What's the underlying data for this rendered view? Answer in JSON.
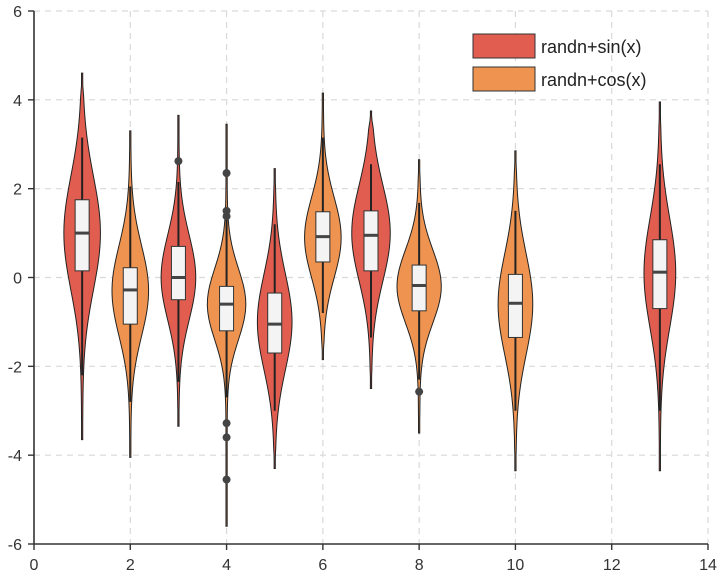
{
  "chart_data": {
    "type": "violin",
    "title": "",
    "xlabel": "",
    "ylabel": "",
    "xlim": [
      0,
      14
    ],
    "ylim": [
      -6,
      6
    ],
    "x_ticks": [
      0,
      2,
      4,
      6,
      8,
      10,
      12,
      14
    ],
    "y_ticks": [
      -6,
      -4,
      -2,
      0,
      2,
      4,
      6
    ],
    "grid": true,
    "legend_position": "top-right",
    "series": [
      {
        "name": "randn+sin(x)",
        "color": "#e05d50",
        "violins": [
          {
            "x": 1,
            "min": -3.65,
            "max": 4.6,
            "q1": 0.15,
            "median": 1.0,
            "q3": 1.75,
            "whisker_low": -2.2,
            "whisker_high": 3.15,
            "peak": 1.0,
            "half_width": 0.38,
            "outliers": []
          },
          {
            "x": 3,
            "min": -3.35,
            "max": 3.65,
            "q1": -0.5,
            "median": 0.0,
            "q3": 0.7,
            "whisker_low": -2.35,
            "whisker_high": 2.15,
            "peak": 0.0,
            "half_width": 0.36,
            "outliers": [
              2.62
            ]
          },
          {
            "x": 5,
            "min": -4.3,
            "max": 2.45,
            "q1": -1.7,
            "median": -1.05,
            "q3": -0.35,
            "whisker_low": -3.0,
            "whisker_high": 1.2,
            "peak": -1.0,
            "half_width": 0.36,
            "outliers": []
          },
          {
            "x": 7,
            "min": -2.5,
            "max": 3.75,
            "q1": 0.15,
            "median": 0.95,
            "q3": 1.5,
            "whisker_low": -1.35,
            "whisker_high": 2.55,
            "peak": 1.0,
            "half_width": 0.4,
            "outliers": []
          },
          {
            "x": 13,
            "min": -4.35,
            "max": 3.95,
            "q1": -0.7,
            "median": 0.12,
            "q3": 0.85,
            "whisker_low": -3.0,
            "whisker_high": 2.55,
            "peak": 0.1,
            "half_width": 0.33,
            "outliers": []
          }
        ]
      },
      {
        "name": "randn+cos(x)",
        "color": "#ee9450",
        "violins": [
          {
            "x": 2,
            "min": -4.05,
            "max": 3.3,
            "q1": -1.05,
            "median": -0.28,
            "q3": 0.22,
            "whisker_low": -2.8,
            "whisker_high": 2.05,
            "peak": -0.3,
            "half_width": 0.38,
            "outliers": []
          },
          {
            "x": 4,
            "min": -5.6,
            "max": 3.45,
            "q1": -1.2,
            "median": -0.6,
            "q3": -0.2,
            "whisker_low": -2.7,
            "whisker_high": 1.3,
            "peak": -0.6,
            "half_width": 0.4,
            "outliers": [
              2.35,
              1.5,
              1.38,
              -3.28,
              -3.6,
              -4.55
            ]
          },
          {
            "x": 6,
            "min": -1.85,
            "max": 4.15,
            "q1": 0.35,
            "median": 0.92,
            "q3": 1.48,
            "whisker_low": -0.8,
            "whisker_high": 3.15,
            "peak": 0.9,
            "half_width": 0.38,
            "outliers": []
          },
          {
            "x": 8,
            "min": -3.5,
            "max": 2.65,
            "q1": -0.75,
            "median": -0.18,
            "q3": 0.28,
            "whisker_low": -2.3,
            "whisker_high": 1.68,
            "peak": -0.2,
            "half_width": 0.46,
            "outliers": [
              -2.57
            ]
          },
          {
            "x": 10,
            "min": -4.35,
            "max": 2.85,
            "q1": -1.35,
            "median": -0.58,
            "q3": 0.07,
            "whisker_low": -3.0,
            "whisker_high": 1.5,
            "peak": -0.6,
            "half_width": 0.36,
            "outliers": []
          }
        ]
      }
    ]
  }
}
